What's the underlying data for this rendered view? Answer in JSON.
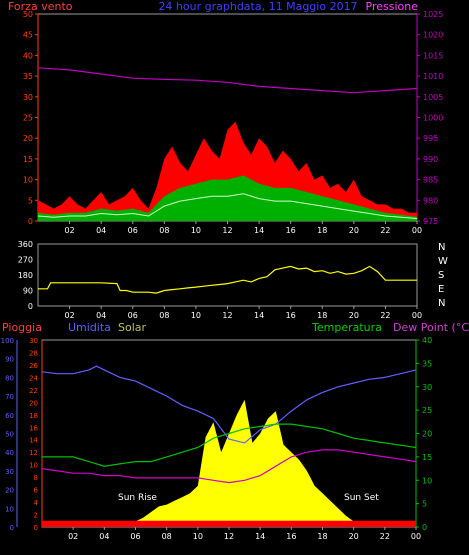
{
  "header": {
    "left": "Forza vento",
    "center": "24 hour graphdata, 11 Maggio 2017",
    "right": "Pressione"
  },
  "colors": {
    "background": "#000000",
    "wind_gust": "#ff0000",
    "wind_avg": "#00b000",
    "wind_cur": "#ffffff",
    "pressure": "#c000c0",
    "direction": "#ffff00",
    "rain": "#ff0000",
    "humidity": "#6060ff",
    "solar": "#ffff00",
    "temperature": "#00c000",
    "dewpoint": "#d000d0",
    "axis_orange": "#ff4000",
    "axis_green": "#00c000"
  },
  "chart_data": [
    {
      "type": "bar",
      "name": "wind-and-pressure",
      "left_axis": {
        "label": "Forza vento",
        "ylim": [
          0,
          50
        ],
        "ticks": [
          "0",
          "5",
          "10",
          "15",
          "20",
          "25",
          "30",
          "35",
          "40",
          "45",
          "50"
        ]
      },
      "right_axis": {
        "label": "Pressione",
        "ylim": [
          975,
          1025
        ],
        "ticks": [
          "975",
          "980",
          "985",
          "990",
          "995",
          "1000",
          "1005",
          "1010",
          "1015",
          "1020",
          "1025"
        ]
      },
      "xlim": [
        0,
        24
      ],
      "x_ticks": [
        "02",
        "04",
        "06",
        "08",
        "10",
        "12",
        "14",
        "16",
        "18",
        "20",
        "22",
        "00"
      ],
      "pressure": {
        "x": [
          0,
          2,
          4,
          6,
          8,
          10,
          12,
          14,
          16,
          18,
          20,
          22,
          24
        ],
        "values": [
          1012,
          1011.5,
          1010.5,
          1009.5,
          1009.2,
          1009,
          1008.5,
          1007.5,
          1007,
          1006.5,
          1006,
          1006.5,
          1007
        ]
      },
      "gust": {
        "x": [
          0,
          0.5,
          1,
          1.5,
          2,
          2.5,
          3,
          3.5,
          4,
          4.5,
          5,
          5.5,
          6,
          6.5,
          7,
          7.5,
          8,
          8.5,
          9,
          9.5,
          10,
          10.5,
          11,
          11.5,
          12,
          12.5,
          13,
          13.5,
          14,
          14.5,
          15,
          15.5,
          16,
          16.5,
          17,
          17.5,
          18,
          18.5,
          19,
          19.5,
          20,
          20.5,
          21,
          21.5,
          22,
          22.5,
          23,
          23.5,
          24
        ],
        "values": [
          5,
          4,
          3,
          4,
          6,
          4,
          3,
          5,
          7,
          4,
          5,
          6,
          8,
          5,
          3,
          8,
          15,
          18,
          14,
          12,
          16,
          20,
          17,
          15,
          22,
          24,
          19,
          16,
          20,
          18,
          14,
          17,
          15,
          12,
          14,
          10,
          11,
          8,
          9,
          7,
          10,
          6,
          5,
          4,
          4,
          3,
          3,
          2,
          2
        ]
      },
      "average": {
        "x": [
          0,
          1,
          2,
          3,
          4,
          5,
          6,
          7,
          8,
          9,
          10,
          11,
          12,
          13,
          14,
          15,
          16,
          17,
          18,
          19,
          20,
          21,
          22,
          23,
          24
        ],
        "values": [
          2,
          1.5,
          2,
          2,
          3,
          2.5,
          3,
          2,
          6,
          8,
          9,
          10,
          10,
          11,
          9,
          8,
          8,
          7,
          6,
          5,
          4,
          3,
          2,
          1.5,
          1
        ]
      }
    },
    {
      "type": "line",
      "name": "wind-direction",
      "left_axis": {
        "ylim": [
          0,
          360
        ],
        "ticks": [
          "0",
          "90",
          "180",
          "270",
          "360"
        ]
      },
      "right_labels": [
        "N",
        "W",
        "S",
        "E",
        "N"
      ],
      "xlim": [
        0,
        24
      ],
      "x_ticks": [
        "02",
        "04",
        "06",
        "08",
        "10",
        "12",
        "14",
        "16",
        "18",
        "20",
        "22",
        "00"
      ],
      "series": [
        {
          "x": [
            0,
            0.6,
            0.8,
            1.5,
            2,
            3,
            4,
            5,
            5.2,
            5.6,
            6,
            6.5,
            7,
            7.5,
            8,
            8.5,
            9,
            9.5,
            10,
            10.5,
            11,
            11.5,
            12,
            12.5,
            13,
            13.5,
            14,
            14.5,
            15,
            15.5,
            16,
            16.5,
            17,
            17.5,
            18,
            18.5,
            19,
            19.5,
            20,
            20.5,
            21,
            21.5,
            22,
            22.5,
            23,
            23.5,
            24
          ],
          "values": [
            100,
            100,
            135,
            135,
            135,
            135,
            135,
            130,
            90,
            90,
            80,
            80,
            80,
            75,
            90,
            95,
            100,
            105,
            110,
            115,
            120,
            125,
            130,
            140,
            150,
            140,
            160,
            170,
            210,
            220,
            230,
            215,
            220,
            200,
            205,
            190,
            200,
            185,
            190,
            205,
            230,
            200,
            150,
            150,
            150,
            150,
            150
          ]
        }
      ]
    },
    {
      "type": "area",
      "name": "temperature-humidity-solar",
      "left_axes": [
        {
          "label": "Umidita",
          "ylim": [
            0,
            100
          ],
          "ticks": [
            "0",
            "10",
            "20",
            "30",
            "40",
            "50",
            "60",
            "70",
            "80",
            "90",
            "100"
          ]
        },
        {
          "label": "Pioggia",
          "ylim": [
            0,
            30
          ],
          "ticks": [
            "0",
            "2",
            "4",
            "6",
            "8",
            "10",
            "12",
            "14",
            "16",
            "18",
            "20",
            "22",
            "24",
            "26",
            "28",
            "30"
          ]
        }
      ],
      "right_axis": {
        "label": "Dew Point (°C)",
        "ylim": [
          0,
          40
        ],
        "ticks": [
          "0",
          "5",
          "10",
          "15",
          "20",
          "25",
          "30",
          "35",
          "40"
        ]
      },
      "legend": [
        "Pioggia",
        "Umidita",
        "Solar",
        "Temperatura",
        "Dew Point (°C)"
      ],
      "annotations": [
        "Sun Rise",
        "Sun Set"
      ],
      "xlim": [
        0,
        24
      ],
      "x_ticks": [
        "02",
        "04",
        "06",
        "08",
        "10",
        "12",
        "14",
        "16",
        "18",
        "20",
        "22",
        "00"
      ],
      "humidity": {
        "x": [
          0,
          1,
          2,
          3,
          3.5,
          4,
          5,
          6,
          7,
          8,
          9,
          10,
          11,
          12,
          13,
          14,
          15,
          16,
          17,
          18,
          19,
          20,
          21,
          22,
          23,
          24
        ],
        "values": [
          83,
          82,
          82,
          84,
          86,
          84,
          80,
          78,
          74,
          70,
          65,
          62,
          58,
          47,
          45,
          52,
          55,
          62,
          68,
          72,
          75,
          77,
          79,
          80,
          82,
          84
        ]
      },
      "temperature": {
        "x": [
          0,
          1,
          2,
          3,
          4,
          5,
          6,
          7,
          8,
          9,
          10,
          11,
          12,
          13,
          14,
          15,
          16,
          17,
          18,
          19,
          20,
          21,
          22,
          23,
          24
        ],
        "values": [
          15,
          15,
          15,
          14,
          13,
          13.5,
          14,
          14,
          15,
          16,
          17,
          19,
          20,
          21,
          21.5,
          22,
          22,
          21.5,
          21,
          20,
          19,
          18.5,
          18,
          17.5,
          17
        ]
      },
      "dewpoint": {
        "x": [
          0,
          1,
          2,
          3,
          4,
          5,
          6,
          7,
          8,
          9,
          10,
          11,
          12,
          13,
          14,
          15,
          16,
          17,
          18,
          19,
          20,
          21,
          22,
          23,
          24
        ],
        "values": [
          12.5,
          12,
          11.5,
          11.5,
          11,
          11,
          10.5,
          10.5,
          10.5,
          10.5,
          10.5,
          10,
          9.5,
          10,
          11,
          13,
          15,
          16,
          16.5,
          16.5,
          16,
          15.5,
          15,
          14.5,
          14
        ]
      },
      "solar": {
        "x": [
          0,
          5,
          5.5,
          6,
          6.5,
          7,
          7.5,
          8,
          8.5,
          9,
          9.5,
          10,
          10.5,
          11,
          11.5,
          12,
          12.5,
          13,
          13.5,
          14,
          14.5,
          15,
          15.5,
          16,
          16.5,
          17,
          17.5,
          18,
          18.5,
          19,
          19.5,
          20,
          20.5,
          21,
          24
        ],
        "values": [
          0,
          0,
          1,
          3,
          5,
          8,
          11,
          12,
          14,
          16,
          18,
          22,
          48,
          56,
          40,
          50,
          60,
          68,
          45,
          50,
          58,
          62,
          44,
          40,
          36,
          30,
          22,
          18,
          14,
          10,
          6,
          3,
          1,
          0,
          0
        ]
      },
      "rain": {
        "x": [
          0,
          24
        ],
        "values": [
          1,
          1
        ]
      }
    }
  ]
}
